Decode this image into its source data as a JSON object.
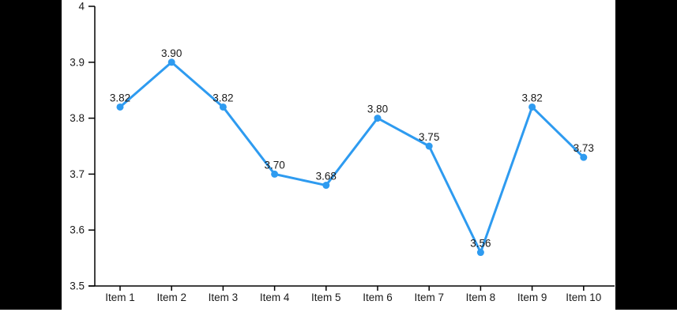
{
  "colors": {
    "background": "#ffffff",
    "letterbox": "#000000",
    "line": "#2e9bf0",
    "marker": "#2e9bf0",
    "axis": "#000000",
    "tick_label": "#1a1a1a",
    "data_label": "#1a1a1a"
  },
  "chart_data": {
    "type": "line",
    "title": "",
    "xlabel": "",
    "ylabel": "",
    "categories": [
      "Item 1",
      "Item 2",
      "Item 3",
      "Item 4",
      "Item 5",
      "Item 6",
      "Item 7",
      "Item 8",
      "Item 9",
      "Item 10"
    ],
    "values": [
      3.82,
      3.9,
      3.82,
      3.7,
      3.68,
      3.8,
      3.75,
      3.56,
      3.82,
      3.73
    ],
    "point_labels": [
      "3.82",
      "3.90",
      "3.82",
      "3.70",
      "3.68",
      "3.80",
      "3.75",
      "3.56",
      "3.82",
      "3.73"
    ],
    "y_ticks": [
      "3.5",
      "3.6",
      "3.7",
      "3.8",
      "3.9",
      "4"
    ],
    "ylim": [
      3.5,
      4
    ],
    "grid": false,
    "legend": "none"
  }
}
